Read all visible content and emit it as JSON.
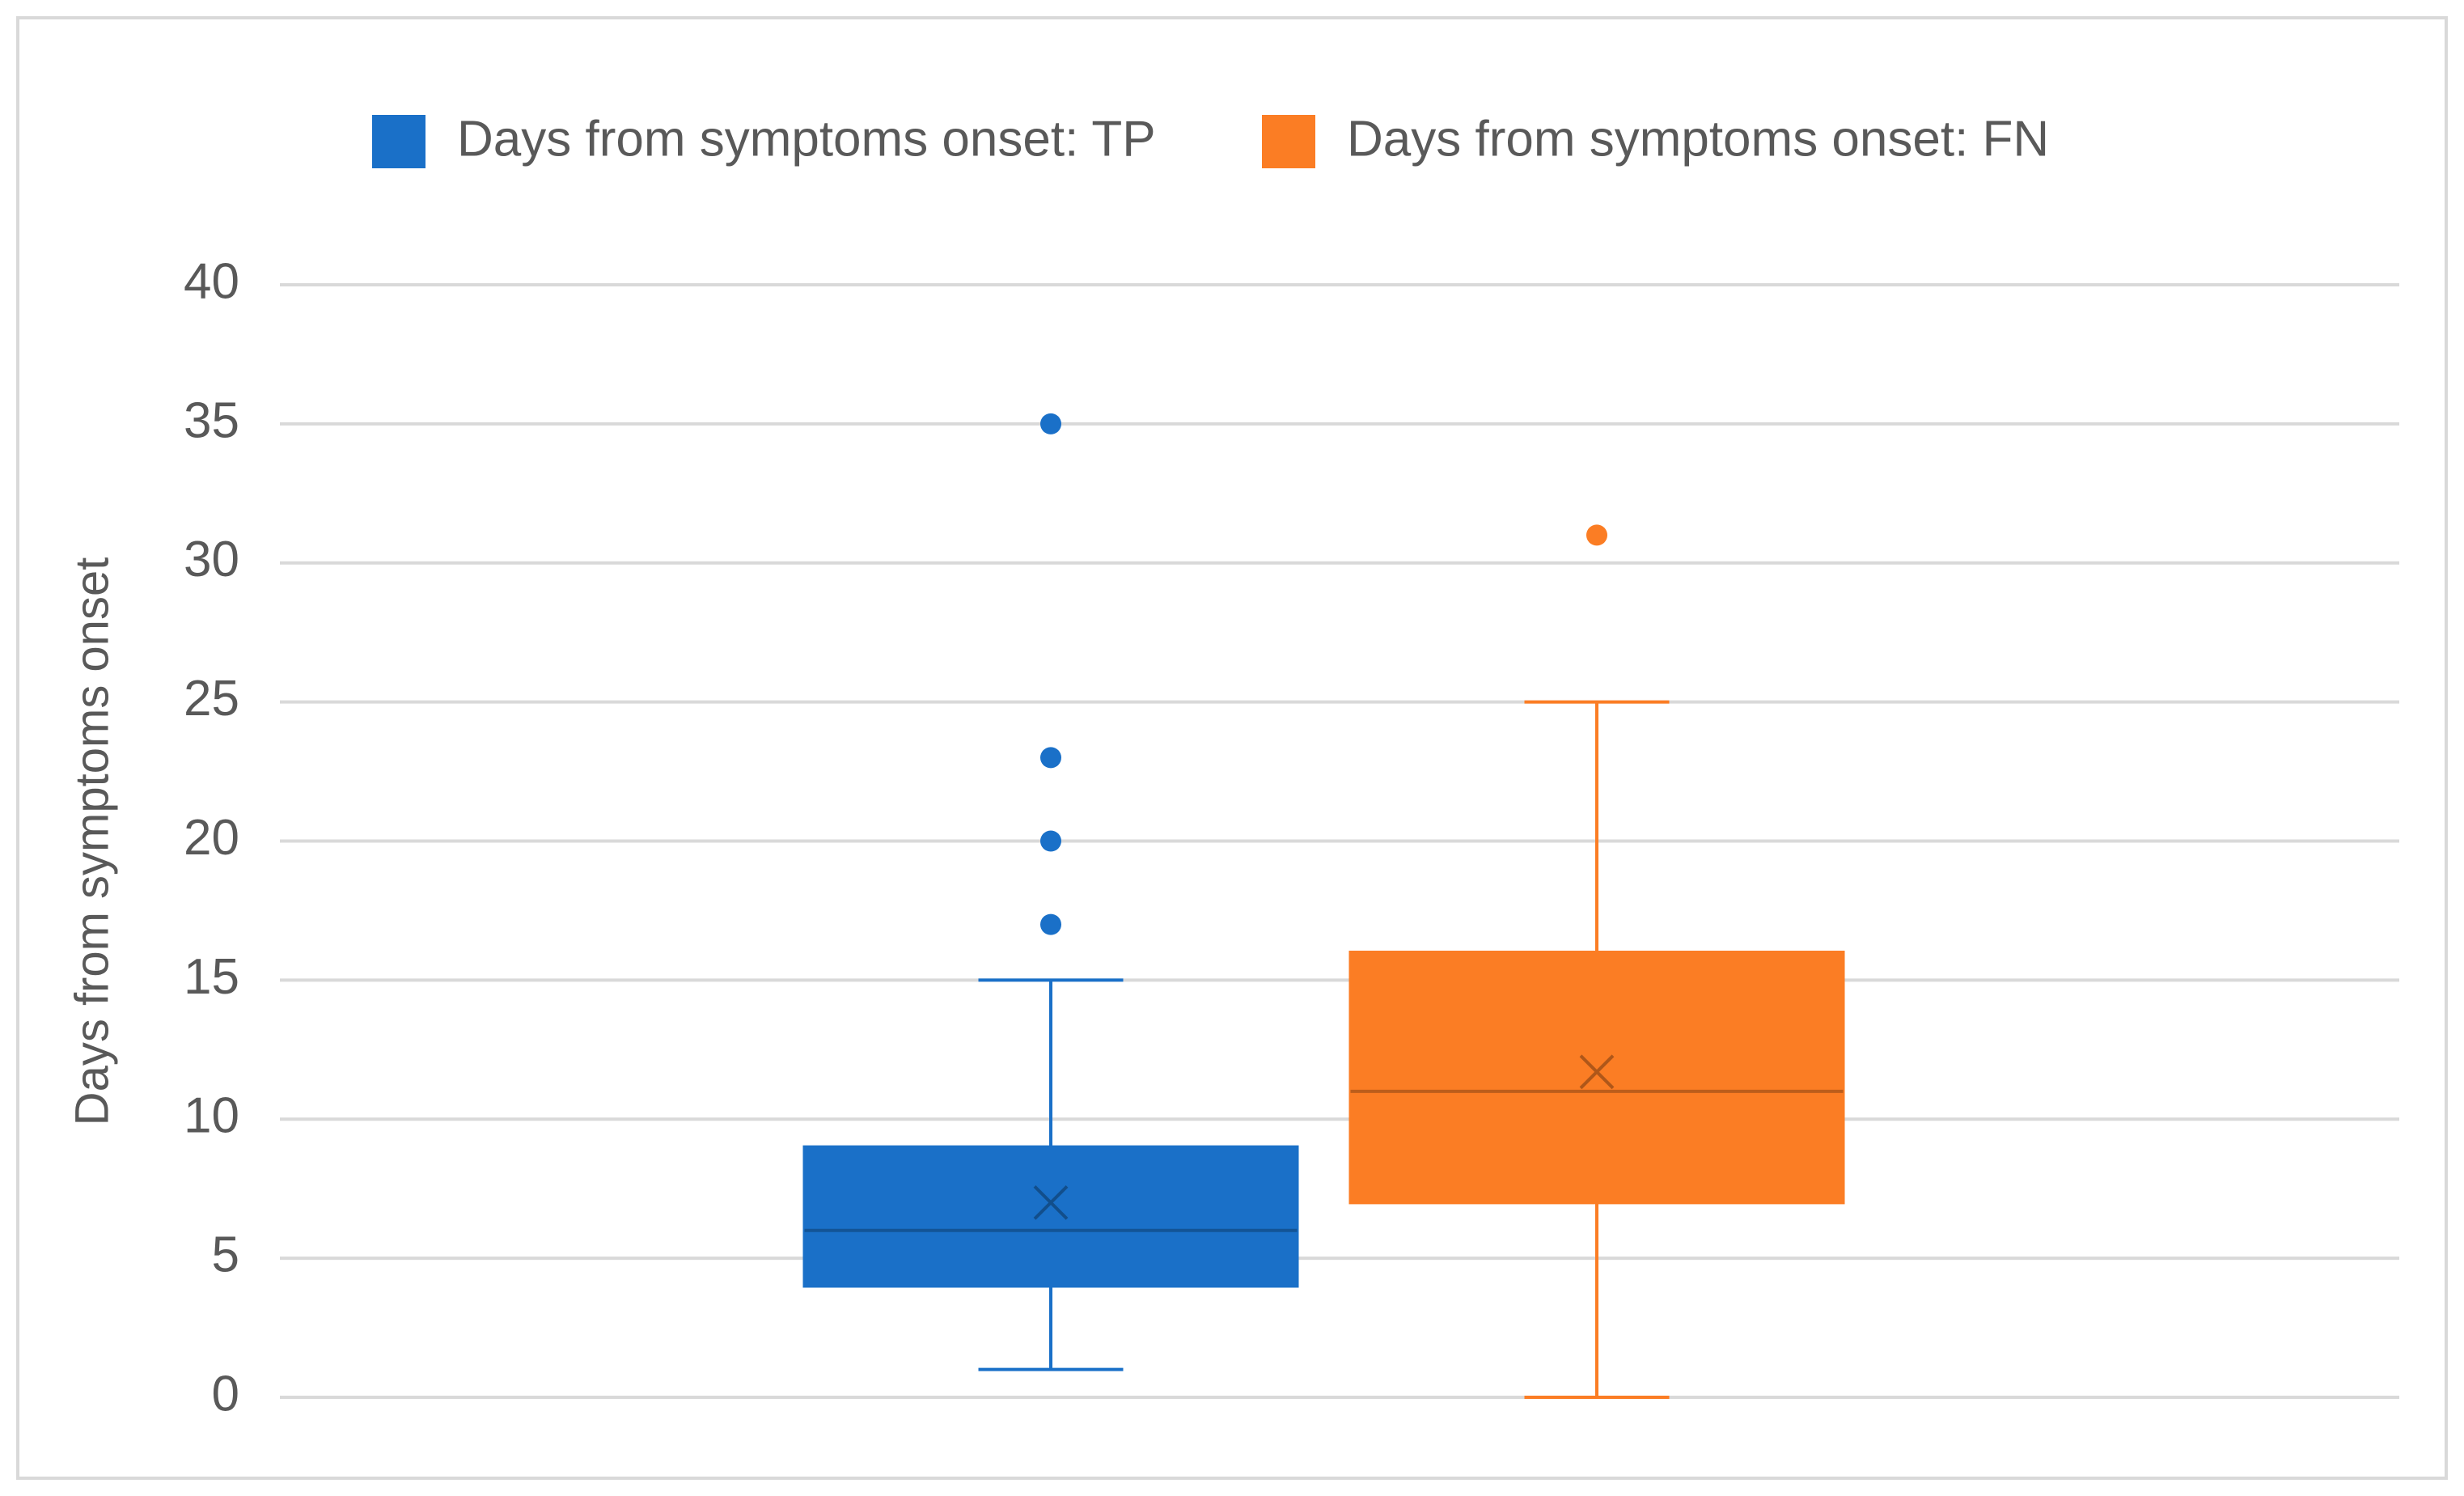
{
  "chart_data": {
    "type": "box",
    "ylabel": "Days from symptoms onset",
    "ylim": [
      0,
      40
    ],
    "yticks": [
      0,
      5,
      10,
      15,
      20,
      25,
      30,
      35,
      40
    ],
    "grid": true,
    "series": [
      {
        "name": "Days from symptoms onset: TP",
        "color": "#1a70c8",
        "min": 1,
        "q1": 4,
        "median": 6,
        "q3": 9,
        "max": 15,
        "mean": 7,
        "outliers": [
          17,
          20,
          23,
          35
        ]
      },
      {
        "name": "Days from symptoms onset: FN",
        "color": "#fb7d24",
        "min": 0,
        "q1": 7,
        "median": 11,
        "q3": 16,
        "max": 25,
        "mean": 11.7,
        "outliers": [
          31
        ]
      }
    ]
  }
}
